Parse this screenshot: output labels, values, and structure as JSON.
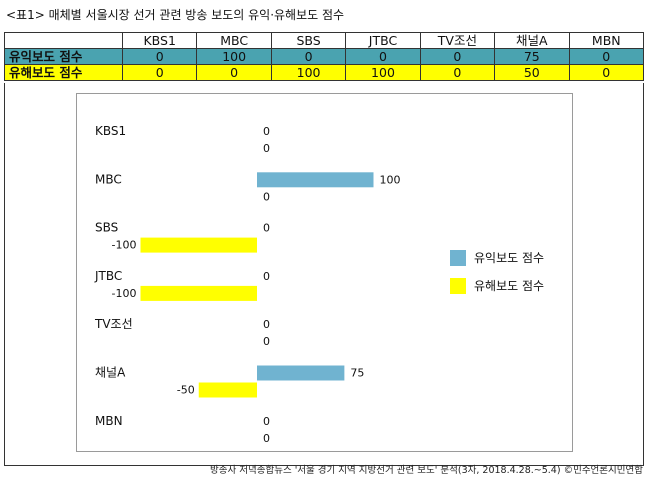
{
  "caption": "<표1> 매체별 서울시장 선거 관련 방송 보도의 유익·유해보도 점수",
  "table": {
    "columns": [
      "KBS1",
      "MBC",
      "SBS",
      "JTBC",
      "TV조선",
      "채널A",
      "MBN"
    ],
    "rows": [
      {
        "label": "유익보도 점수",
        "values": [
          "0",
          "100",
          "0",
          "0",
          "0",
          "75",
          "0"
        ]
      },
      {
        "label": "유해보도 점수",
        "values": [
          "0",
          "0",
          "100",
          "100",
          "0",
          "50",
          "0"
        ]
      }
    ]
  },
  "chart_data": {
    "type": "bar",
    "orientation": "horizontal",
    "categories": [
      "KBS1",
      "MBC",
      "SBS",
      "JTBC",
      "TV조선",
      "채널A",
      "MBN"
    ],
    "series": [
      {
        "name": "유익보도 점수",
        "color": "#70b3d0",
        "values": [
          0,
          100,
          0,
          0,
          0,
          75,
          0
        ]
      },
      {
        "name": "유해보도 점수",
        "color": "#ffff00",
        "values": [
          0,
          0,
          -100,
          -100,
          0,
          -50,
          0
        ]
      }
    ],
    "xlim": [
      -100,
      100
    ],
    "grid": false,
    "legend": "right"
  },
  "source": "방송사 저녁종합뉴스 '서울 경기 지역 지방선거 관련 보도' 분석(3차, 2018.4.28.~5.4) ©민주언론시민연합"
}
